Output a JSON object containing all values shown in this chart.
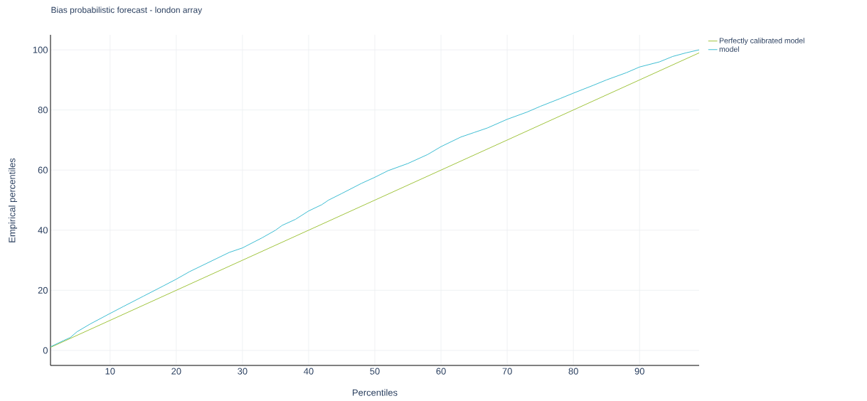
{
  "chart_data": {
    "type": "line",
    "title": "Bias probabilistic forecast - london array",
    "xlabel": "Percentiles",
    "ylabel": "Empirical percentiles",
    "xlim": [
      1,
      99
    ],
    "ylim": [
      -5,
      105
    ],
    "xticks": [
      10,
      20,
      30,
      40,
      50,
      60,
      70,
      80,
      90
    ],
    "yticks": [
      0,
      20,
      40,
      60,
      80,
      100
    ],
    "grid": true,
    "legend": "top right",
    "marker": "none",
    "line_style": "solid",
    "series": [
      {
        "name": "Perfectly calibrated model",
        "color": "#a0c43c",
        "x": [
          1,
          50,
          99
        ],
        "values": [
          1,
          50,
          99
        ]
      },
      {
        "name": "model",
        "color": "#3dbdd2",
        "x": [
          1,
          3,
          4,
          5,
          7,
          10,
          12,
          15,
          18,
          20,
          22,
          25,
          28,
          30,
          33,
          35,
          36,
          38,
          40,
          42,
          43,
          45,
          48,
          50,
          52,
          55,
          58,
          60,
          63,
          65,
          67,
          70,
          73,
          75,
          78,
          80,
          83,
          85,
          88,
          90,
          93,
          95,
          97,
          99
        ],
        "values": [
          1.2,
          3.3,
          4.3,
          6.2,
          8.8,
          12.3,
          14.6,
          18.0,
          21.4,
          23.7,
          26.2,
          29.4,
          32.6,
          34.1,
          37.5,
          40.0,
          41.6,
          43.6,
          46.4,
          48.5,
          50.0,
          52.2,
          55.6,
          57.6,
          59.8,
          62.2,
          65.2,
          67.8,
          71.0,
          72.5,
          74.0,
          76.9,
          79.3,
          81.2,
          83.8,
          85.6,
          88.2,
          90.0,
          92.4,
          94.3,
          96.0,
          97.8,
          99.0,
          100.0
        ]
      }
    ]
  }
}
